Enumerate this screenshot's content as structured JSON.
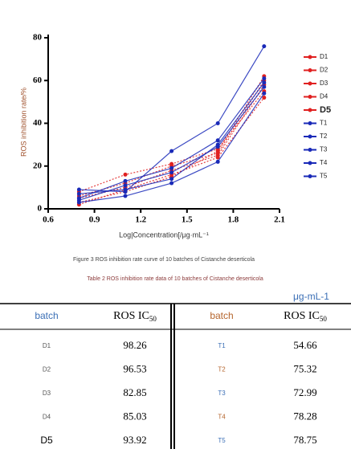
{
  "chart_data": {
    "type": "line",
    "x_label": "Log|Concentration[/μg·mL⁻¹",
    "y_label": "ROS inhibition rate/%",
    "x": [
      0.8,
      1.1,
      1.4,
      1.7,
      2.0
    ],
    "xlim": [
      0.6,
      2.1
    ],
    "xticks": [
      0.6,
      0.9,
      1.2,
      1.5,
      1.8,
      2.1
    ],
    "ylim": [
      0,
      80
    ],
    "yticks": [
      0,
      20,
      40,
      60,
      80
    ],
    "series": [
      {
        "name": "D1",
        "color": "#e02020",
        "values": [
          5,
          10,
          18,
          25,
          58
        ]
      },
      {
        "name": "D2",
        "color": "#e02020",
        "values": [
          3,
          8,
          15,
          27,
          62
        ]
      },
      {
        "name": "D3",
        "color": "#e02020",
        "values": [
          6,
          12,
          20,
          26,
          60
        ]
      },
      {
        "name": "D4",
        "color": "#e02020",
        "values": [
          2,
          9,
          16,
          24,
          52
        ]
      },
      {
        "name": "D5",
        "color": "#e02020",
        "values": [
          8,
          16,
          21,
          28,
          55
        ]
      },
      {
        "name": "T1",
        "color": "#1a2ab8",
        "values": [
          4,
          11,
          17,
          29,
          57
        ]
      },
      {
        "name": "T2",
        "color": "#1a2ab8",
        "values": [
          7,
          9,
          14,
          30,
          59
        ]
      },
      {
        "name": "T3",
        "color": "#1a2ab8",
        "values": [
          5,
          13,
          19,
          32,
          61
        ]
      },
      {
        "name": "T4",
        "color": "#1a2ab8",
        "values": [
          3,
          6,
          12,
          22,
          54
        ]
      },
      {
        "name": "T5",
        "color": "#1a2ab8",
        "values": [
          9,
          8,
          27,
          40,
          76
        ]
      }
    ]
  },
  "figure_caption": "Figure 3 ROS inhibition rate curve of 10 batches of Cistanche deserticola",
  "table": {
    "title": "Table 2 ROS inhibition rate data of 10 batches of Cistanche deserticola",
    "unit": "μg-mL-1",
    "header": {
      "batch_left": "batch",
      "ic": "ROS IC",
      "ic_sub": "50",
      "batch_right": "batch"
    },
    "rows": [
      [
        "D1",
        98.26,
        "T1",
        54.66
      ],
      [
        "D2",
        96.53,
        "T2",
        75.32
      ],
      [
        "D3",
        82.85,
        "T3",
        72.99
      ],
      [
        "D4",
        85.03,
        "T4",
        78.28
      ],
      [
        "D5",
        93.92,
        "T5",
        78.75
      ]
    ]
  }
}
